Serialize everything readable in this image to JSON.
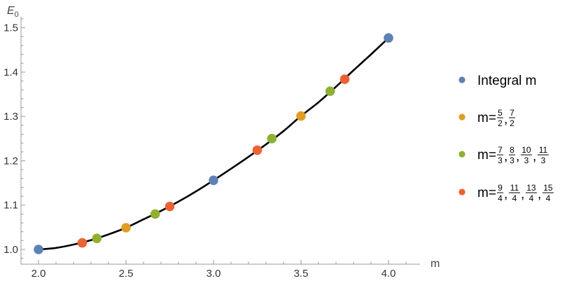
{
  "chart_data": {
    "type": "scatter",
    "title": "",
    "xlabel": "m",
    "ylabel": "E",
    "ylabel_sub": "0",
    "xlim": [
      1.92,
      4.2
    ],
    "ylim": [
      0.975,
      1.52
    ],
    "xticks": [
      "2.0",
      "2.5",
      "3.0",
      "3.5",
      "4.0"
    ],
    "xtick_values": [
      2.0,
      2.5,
      3.0,
      3.5,
      4.0
    ],
    "yticks": [
      "1.0",
      "1.1",
      "1.2",
      "1.3",
      "1.4",
      "1.5"
    ],
    "ytick_values": [
      1.0,
      1.1,
      1.2,
      1.3,
      1.4,
      1.5
    ],
    "grid": false,
    "legend_position": "right",
    "curve_color": "#000000",
    "curve": {
      "x": [
        2.0,
        2.1,
        2.2,
        2.3,
        2.4,
        2.5,
        2.6,
        2.7,
        2.8,
        2.9,
        3.0,
        3.1,
        3.2,
        3.3,
        3.4,
        3.5,
        3.6,
        3.7,
        3.8,
        3.9,
        4.0
      ],
      "y": [
        1.0,
        1.0035,
        1.011,
        1.021,
        1.034,
        1.049,
        1.068,
        1.087,
        1.108,
        1.131,
        1.156,
        1.182,
        1.209,
        1.237,
        1.267,
        1.301,
        1.332,
        1.367,
        1.404,
        1.44,
        1.477
      ]
    },
    "series": [
      {
        "label_prefix": "Integral m",
        "fractions": [],
        "color": "#5e81b5",
        "x": [
          2.0,
          3.0,
          4.0
        ],
        "y": [
          1.0,
          1.156,
          1.477
        ]
      },
      {
        "label_prefix": "m=",
        "fractions": [
          [
            "5",
            "2"
          ],
          [
            "7",
            "2"
          ]
        ],
        "color": "#e19c24",
        "x": [
          2.5,
          3.5
        ],
        "y": [
          1.049,
          1.301
        ]
      },
      {
        "label_prefix": "m=",
        "fractions": [
          [
            "7",
            "3"
          ],
          [
            "8",
            "3"
          ],
          [
            "10",
            "3"
          ],
          [
            "11",
            "3"
          ]
        ],
        "color": "#8fb032",
        "x": [
          2.3333,
          2.6667,
          3.3333,
          3.6667
        ],
        "y": [
          1.025,
          1.08,
          1.25,
          1.357
        ]
      },
      {
        "label_prefix": "m=",
        "fractions": [
          [
            "9",
            "4"
          ],
          [
            "11",
            "4"
          ],
          [
            "13",
            "4"
          ],
          [
            "15",
            "4"
          ]
        ],
        "color": "#eb6235",
        "x": [
          2.25,
          2.75,
          3.25,
          3.75
        ],
        "y": [
          1.015,
          1.097,
          1.224,
          1.384
        ]
      }
    ]
  }
}
